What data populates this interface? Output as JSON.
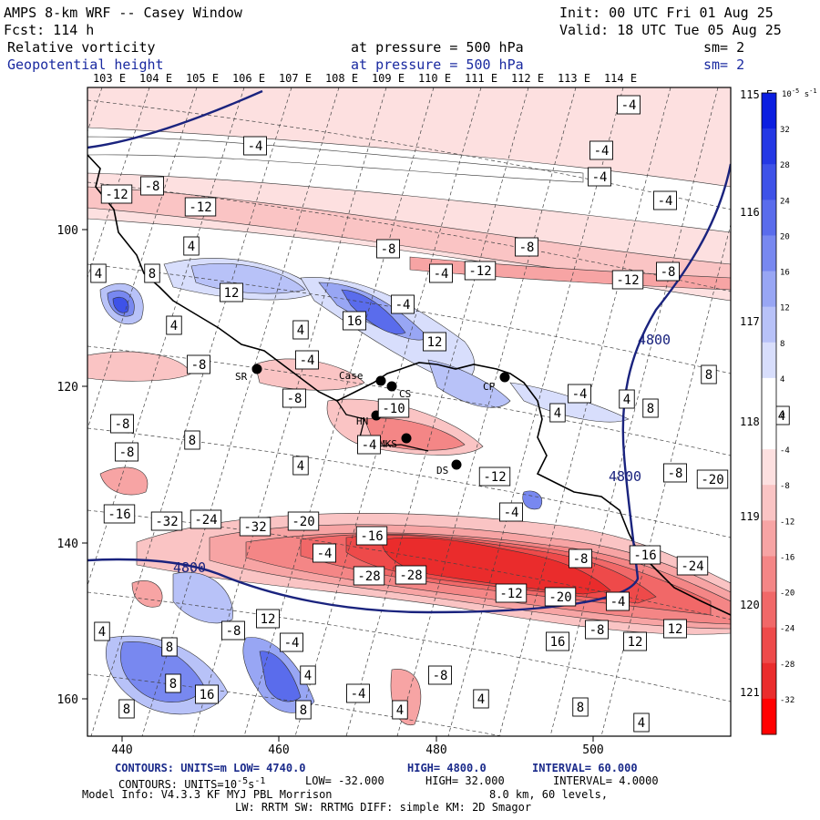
{
  "header": {
    "title_left": "AMPS 8-km WRF -- Casey Window",
    "fcst": "Fcst: 114 h",
    "init": "Init: 00 UTC Fri 01 Aug 25",
    "valid": "Valid: 18 UTC Tue 05 Aug 25",
    "field1_name": "Relative vorticity",
    "field1_level": "at pressure =  500 hPa",
    "field1_sm": "sm= 2",
    "field2_name": "Geopotential height",
    "field2_level": "at pressure =  500 hPa",
    "field2_sm": "sm= 2"
  },
  "footer": {
    "line1_a": "CONTOURS: UNITS=m  LOW= 4740.0",
    "line1_b": "HIGH= 4800.0",
    "line1_c": "INTERVAL= 60.000",
    "line2_a": "CONTOURS: UNITS=10",
    "line2_sup": "-5",
    "line2_b": "s",
    "line2_sup2": "-1",
    "line2_c": "LOW= -32.000",
    "line2_d": "HIGH= 32.000",
    "line2_e": "INTERVAL= 4.0000",
    "line3_a": "Model Info: V4.3.3  KF    MYJ PBL  Morrison",
    "line3_b": "8.0 km,  60 levels,",
    "line4": "LW: RRTM SW: RRTMG  DIFF: simple KM: 2D Smagor"
  },
  "chart_data": {
    "type": "heatmap",
    "x_ticks": [
      "440",
      "460",
      "480",
      "500"
    ],
    "y_ticks": [
      "100",
      "120",
      "140",
      "160"
    ],
    "top_lon_labels": [
      "103 E",
      "104 E",
      "105 E",
      "106 E",
      "107 E",
      "108 E",
      "109 E",
      "110 E",
      "111 E",
      "112 E",
      "113 E",
      "114 E"
    ],
    "right_lon_labels": [
      "115 E",
      "116 E",
      "117 E",
      "118 E",
      "119 E",
      "120 E",
      "121 E"
    ],
    "colorbar": {
      "unit_label": "10",
      "unit_sup": "-5",
      "unit_tail": "s",
      "unit_sup2": "-1",
      "levels": [
        "32",
        "28",
        "24",
        "20",
        "16",
        "12",
        "8",
        "4",
        "0",
        "-4",
        "-8",
        "-12",
        "-16",
        "-20",
        "-24",
        "-28",
        "-32"
      ],
      "colors": [
        "#0b1ee0",
        "#2438e4",
        "#3e52e8",
        "#5a6cec",
        "#7888f0",
        "#98a6f4",
        "#b8c2f8",
        "#d8defc",
        "#ffffff",
        "#ffffff",
        "#fde0e0",
        "#fac4c4",
        "#f7a4a4",
        "#f48686",
        "#f16868",
        "#ee4a4a",
        "#ea2c2c",
        "#ff0000"
      ]
    },
    "stations": [
      "SR",
      "Case",
      "CS",
      "HN",
      "MKS",
      "DS",
      "CP"
    ],
    "height_contour_labels": [
      "4800",
      "4800",
      "4800"
    ],
    "vorticity_labels": [
      "-4",
      "-4",
      "-4",
      "-4",
      "-4",
      "-8",
      "-12",
      "-12",
      "-8",
      "4",
      "-8",
      "-4",
      "-12",
      "-12",
      "-8",
      "4",
      "8",
      "12",
      "16",
      "-4",
      "4",
      "12",
      "4",
      "-8",
      "-4",
      "-8",
      "8",
      "-4",
      "4",
      "8",
      "4",
      "-10",
      "-8",
      "-4",
      "8",
      "4",
      "-8",
      "-8",
      "-12",
      "-20",
      "-16",
      "-32",
      "-24",
      "-32",
      "-20",
      "-16",
      "-4",
      "-8",
      "-16",
      "-24",
      "-28",
      "-28",
      "-12",
      "-20",
      "-4",
      "-8",
      "12",
      "16",
      "12",
      "4",
      "8",
      "-8",
      "-4",
      "12",
      "8",
      "16",
      "4",
      "8",
      "8",
      "-8",
      "-4",
      "4",
      "-4",
      "4",
      "4",
      "8",
      "4",
      "-4",
      "-4",
      "8",
      "4",
      "4"
    ]
  }
}
